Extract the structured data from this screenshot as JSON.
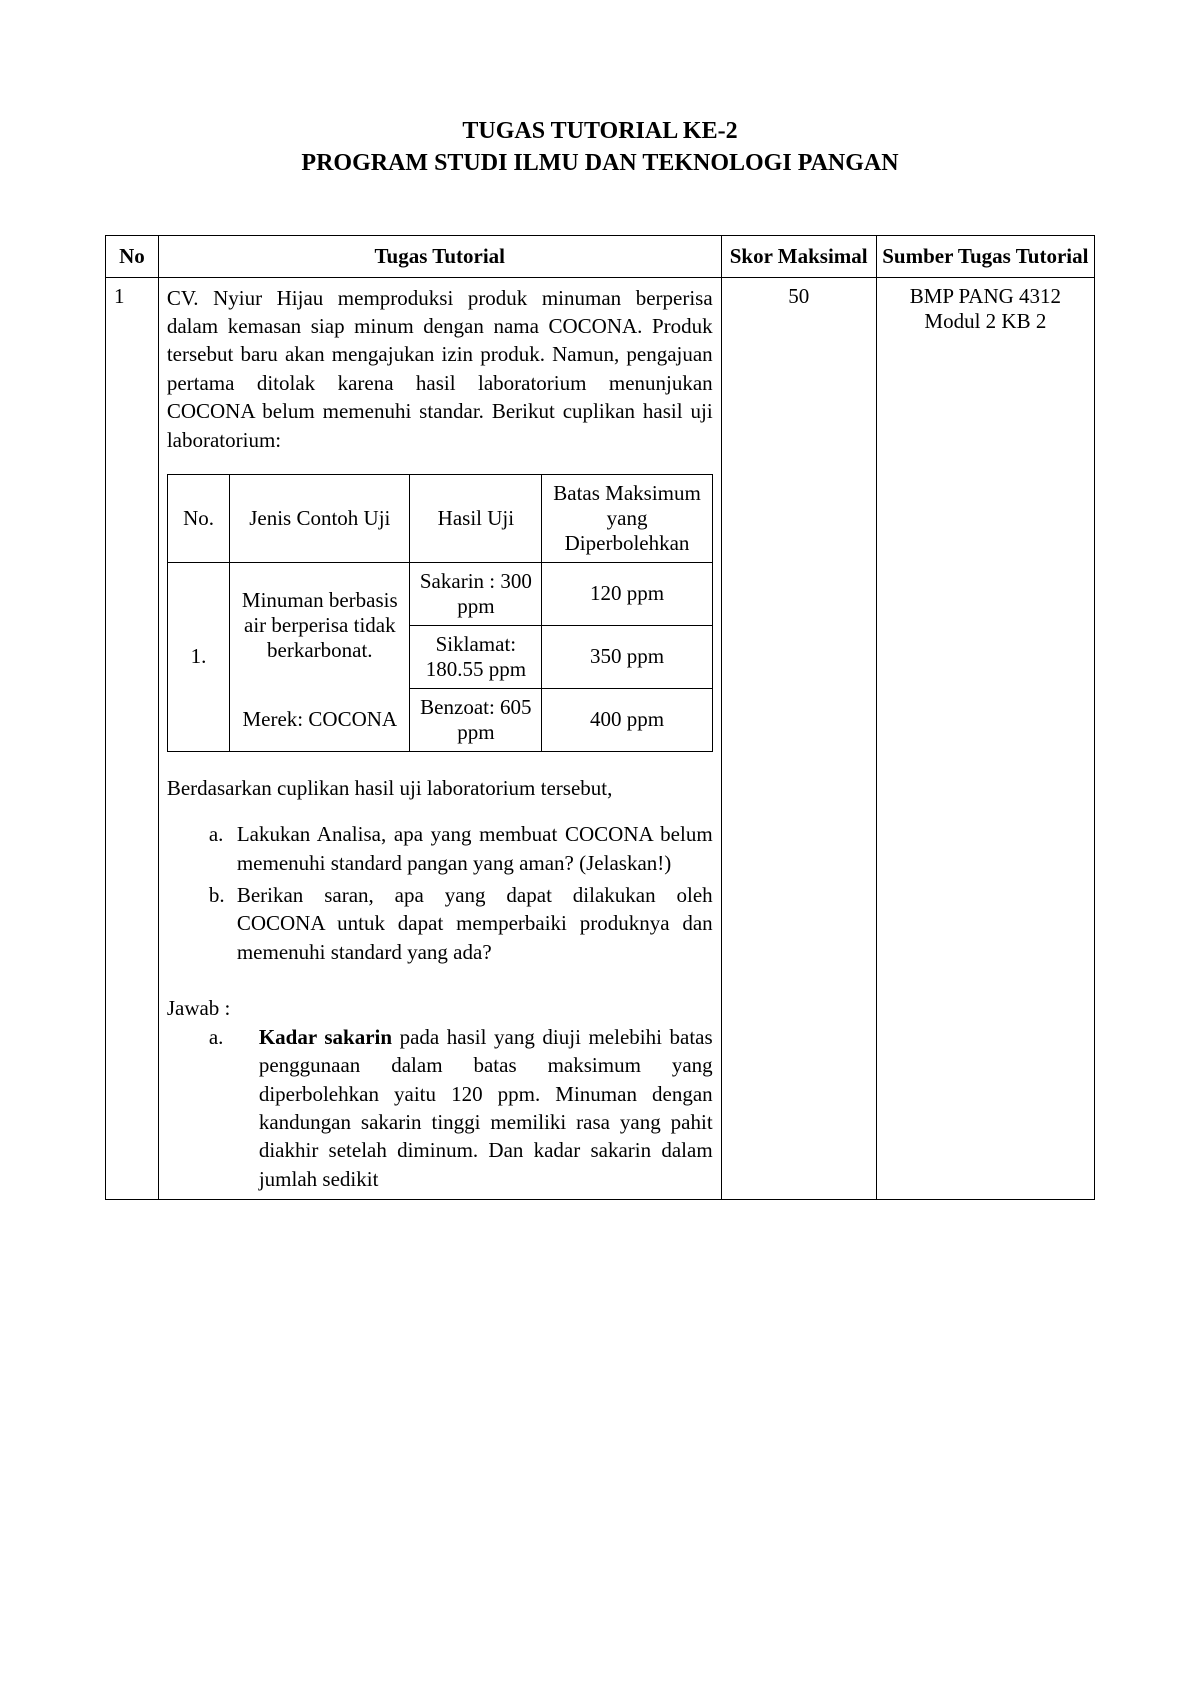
{
  "title": {
    "line1": "TUGAS TUTORIAL KE-2",
    "line2": "PROGRAM STUDI ILMU DAN TEKNOLOGI PANGAN"
  },
  "mainHeaders": {
    "no": "No",
    "task": "Tugas Tutorial",
    "score": "Skor Maksimal",
    "source": "Sumber Tugas Tutorial"
  },
  "row": {
    "no": "1",
    "intro": "CV. Nyiur Hijau memproduksi produk minuman berperisa dalam kemasan siap minum dengan nama COCONA. Produk tersebut baru akan mengajukan izin produk. Namun, pengajuan pertama ditolak karena hasil laboratorium menunjukan COCONA belum memenuhi standar. Berikut cuplikan hasil uji laboratorium:",
    "innerHeaders": {
      "no": "No.",
      "jenis": "Jenis Contoh Uji",
      "hasil": "Hasil Uji",
      "batas": "Batas Maksimum yang Diperbolehkan"
    },
    "innerRow": {
      "no": "1.",
      "jenis1": "Minuman berbasis air berperisa tidak berkarbonat.",
      "jenis2": "Merek: COCONA",
      "hasil1": "Sakarin : 300 ppm",
      "batas1": "120 ppm",
      "hasil2": "Siklamat: 180.55 ppm",
      "batas2": "350 ppm",
      "hasil3": "Benzoat: 605 ppm",
      "batas3": "400 ppm"
    },
    "afterTable": "Berdasarkan cuplikan hasil uji laboratorium tersebut,",
    "qa": {
      "a": "Lakukan Analisa, apa yang membuat COCONA belum memenuhi standard pangan yang aman? (Jelaskan!)",
      "b": "Berikan saran, apa yang dapat dilakukan oleh COCONA untuk dapat memperbaiki produknya dan memenuhi standard yang ada?"
    },
    "jawabLabel": "Jawab :",
    "answer": {
      "a_bold": "Kadar sakarin",
      "a_rest": " pada hasil yang diuji melebihi batas penggunaan dalam batas maksimum yang diperbolehkan yaitu 120 ppm. Minuman dengan kandungan sakarin tinggi memiliki rasa yang pahit diakhir setelah diminum. Dan kadar sakarin dalam jumlah sedikit"
    },
    "score": "50",
    "source": "BMP PANG 4312 Modul 2 KB 2"
  },
  "markers": {
    "a": "a.",
    "b": "b."
  },
  "colors": {
    "background": "#ffffff",
    "text": "#000000",
    "border": "#000000"
  },
  "typography": {
    "title_fontsize": 24,
    "body_fontsize": 21,
    "font_family": "Times New Roman"
  }
}
